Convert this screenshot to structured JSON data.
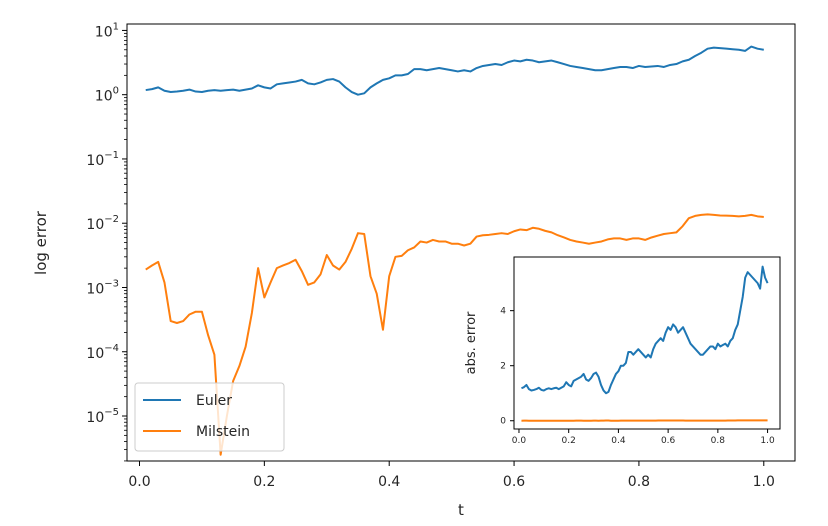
{
  "colors": {
    "euler": "#1f77b4",
    "milstein": "#ff7f0e"
  },
  "chart_data": [
    {
      "type": "line",
      "role": "main",
      "xlabel": "t",
      "ylabel": "log error",
      "xlim": [
        -0.02,
        1.05
      ],
      "ylim_log10": [
        -5.7,
        1.1
      ],
      "yscale": "log",
      "grid": false,
      "legend": "lower-left",
      "xticks": [
        "0.0",
        "0.2",
        "0.4",
        "0.6",
        "0.8",
        "1.0"
      ],
      "xtick_values": [
        0.0,
        0.2,
        0.4,
        0.6,
        0.8,
        1.0
      ],
      "yticks": [
        {
          "exp": "1",
          "label": "10",
          "value": 1
        },
        {
          "exp": "0",
          "label": "10",
          "value": 0
        },
        {
          "exp": "−1",
          "label": "10",
          "value": -1
        },
        {
          "exp": "−2",
          "label": "10",
          "value": -2
        },
        {
          "exp": "−3",
          "label": "10",
          "value": -3
        },
        {
          "exp": "−4",
          "label": "10",
          "value": -4
        },
        {
          "exp": "−5",
          "label": "10",
          "value": -5
        }
      ],
      "x": [
        0.01,
        0.02,
        0.03,
        0.04,
        0.05,
        0.06,
        0.07,
        0.08,
        0.09,
        0.1,
        0.11,
        0.12,
        0.13,
        0.14,
        0.15,
        0.16,
        0.17,
        0.18,
        0.19,
        0.2,
        0.21,
        0.22,
        0.23,
        0.24,
        0.25,
        0.26,
        0.27,
        0.28,
        0.29,
        0.3,
        0.31,
        0.32,
        0.33,
        0.34,
        0.35,
        0.36,
        0.37,
        0.38,
        0.39,
        0.4,
        0.41,
        0.42,
        0.43,
        0.44,
        0.45,
        0.46,
        0.47,
        0.48,
        0.49,
        0.5,
        0.51,
        0.52,
        0.53,
        0.54,
        0.55,
        0.56,
        0.57,
        0.58,
        0.59,
        0.6,
        0.61,
        0.62,
        0.63,
        0.64,
        0.65,
        0.66,
        0.67,
        0.68,
        0.69,
        0.7,
        0.71,
        0.72,
        0.73,
        0.74,
        0.75,
        0.76,
        0.77,
        0.78,
        0.79,
        0.8,
        0.81,
        0.82,
        0.83,
        0.84,
        0.85,
        0.86,
        0.87,
        0.88,
        0.89,
        0.9,
        0.91,
        0.92,
        0.93,
        0.94,
        0.95,
        0.96,
        0.97,
        0.98,
        0.99,
        1.0
      ],
      "series": [
        {
          "name": "Euler",
          "color": "#1f77b4",
          "values": [
            1.18,
            1.22,
            1.3,
            1.15,
            1.1,
            1.12,
            1.15,
            1.2,
            1.12,
            1.1,
            1.15,
            1.18,
            1.15,
            1.18,
            1.2,
            1.15,
            1.2,
            1.25,
            1.4,
            1.3,
            1.25,
            1.45,
            1.5,
            1.55,
            1.6,
            1.7,
            1.5,
            1.45,
            1.55,
            1.7,
            1.75,
            1.6,
            1.3,
            1.1,
            1.0,
            1.05,
            1.3,
            1.5,
            1.7,
            1.8,
            2.0,
            2.0,
            2.1,
            2.5,
            2.5,
            2.4,
            2.5,
            2.6,
            2.5,
            2.4,
            2.3,
            2.4,
            2.3,
            2.6,
            2.8,
            2.9,
            3.0,
            2.9,
            3.2,
            3.4,
            3.3,
            3.5,
            3.4,
            3.2,
            3.3,
            3.4,
            3.2,
            3.0,
            2.8,
            2.7,
            2.6,
            2.5,
            2.4,
            2.4,
            2.5,
            2.6,
            2.7,
            2.7,
            2.6,
            2.8,
            2.7,
            2.75,
            2.8,
            2.7,
            2.9,
            3.0,
            3.3,
            3.5,
            4.0,
            4.5,
            5.2,
            5.4,
            5.3,
            5.2,
            5.1,
            5.0,
            4.8,
            5.6,
            5.2,
            5.0
          ]
        },
        {
          "name": "Milstein",
          "color": "#ff7f0e",
          "values": [
            0.0019,
            0.0022,
            0.0025,
            0.0012,
            0.0003,
            0.00028,
            0.0003,
            0.00038,
            0.00042,
            0.00042,
            0.00018,
            9e-05,
            2.5e-06,
            1e-05,
            3.5e-05,
            6e-05,
            0.00012,
            0.0004,
            0.002,
            0.0007,
            0.0012,
            0.002,
            0.0022,
            0.0024,
            0.0027,
            0.0018,
            0.0011,
            0.0012,
            0.0016,
            0.0032,
            0.0022,
            0.0019,
            0.0025,
            0.004,
            0.007,
            0.0068,
            0.0015,
            0.0008,
            0.00022,
            0.0015,
            0.003,
            0.0031,
            0.0038,
            0.0042,
            0.0052,
            0.005,
            0.0055,
            0.0052,
            0.0052,
            0.0048,
            0.0048,
            0.0045,
            0.0048,
            0.0062,
            0.0065,
            0.0066,
            0.0068,
            0.007,
            0.0068,
            0.0075,
            0.008,
            0.0078,
            0.0085,
            0.0082,
            0.0076,
            0.0072,
            0.0065,
            0.006,
            0.0055,
            0.0052,
            0.005,
            0.0048,
            0.005,
            0.0052,
            0.0056,
            0.0058,
            0.0058,
            0.0055,
            0.0058,
            0.0058,
            0.0055,
            0.006,
            0.0064,
            0.0068,
            0.007,
            0.0072,
            0.009,
            0.012,
            0.013,
            0.0135,
            0.0137,
            0.0135,
            0.0132,
            0.0131,
            0.013,
            0.0128,
            0.013,
            0.0135,
            0.0128,
            0.0125
          ]
        }
      ]
    },
    {
      "type": "line",
      "role": "inset",
      "xlabel": "",
      "ylabel": "abs. error",
      "xlim": [
        -0.02,
        1.05
      ],
      "ylim": [
        -0.3,
        5.95
      ],
      "xticks": [
        "0.0",
        "0.2",
        "0.4",
        "0.6",
        "0.8",
        "1.0"
      ],
      "xtick_values": [
        0.0,
        0.2,
        0.4,
        0.6,
        0.8,
        1.0
      ],
      "yticks": [
        "0",
        "2",
        "4"
      ],
      "ytick_values": [
        0,
        2,
        4
      ],
      "x_ref": "main",
      "series": [
        {
          "name": "Euler",
          "color": "#1f77b4",
          "same_as": "main.Euler"
        },
        {
          "name": "Milstein",
          "color": "#ff7f0e",
          "same_as": "main.Milstein"
        }
      ]
    }
  ],
  "legend": {
    "items": [
      "Euler",
      "Milstein"
    ]
  }
}
